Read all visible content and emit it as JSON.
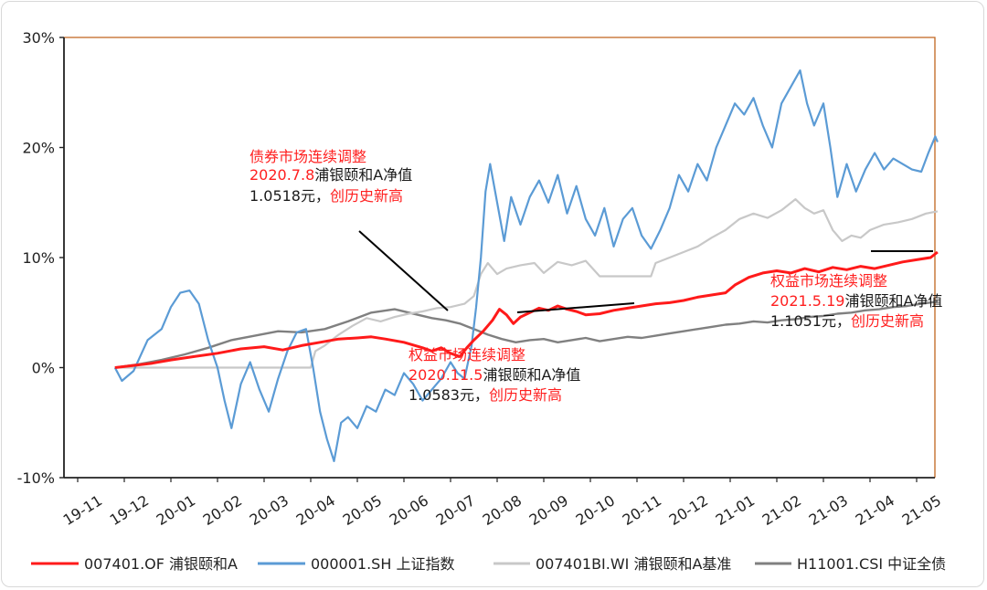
{
  "chart_data": {
    "type": "line",
    "ylim": [
      -10,
      30
    ],
    "y_ticks": [
      "30%",
      "20%",
      "10%",
      "0%",
      "-10%"
    ],
    "y_tick_values": [
      30,
      20,
      10,
      0,
      -10
    ],
    "x_ticks": [
      "19-11",
      "19-12",
      "20-01",
      "20-02",
      "20-03",
      "20-04",
      "20-05",
      "20-06",
      "20-07",
      "20-08",
      "20-09",
      "20-10",
      "20-11",
      "20-12",
      "21-01",
      "21-02",
      "21-03",
      "21-04",
      "21-05"
    ],
    "x_range": [
      0,
      18.5
    ],
    "grid": false,
    "legend_position": "bottom",
    "series": [
      {
        "name": "007401.OF 浦银颐和A",
        "color": "#ff1a1a",
        "points": [
          [
            0.8,
            0
          ],
          [
            1.2,
            0.2
          ],
          [
            1.6,
            0.4
          ],
          [
            2,
            0.7
          ],
          [
            2.5,
            1.0
          ],
          [
            3,
            1.3
          ],
          [
            3.5,
            1.7
          ],
          [
            4,
            1.9
          ],
          [
            4.4,
            1.6
          ],
          [
            4.8,
            2.0
          ],
          [
            5.2,
            2.3
          ],
          [
            5.6,
            2.6
          ],
          [
            6,
            2.7
          ],
          [
            6.3,
            2.8
          ],
          [
            6.6,
            2.6
          ],
          [
            7,
            2.3
          ],
          [
            7.4,
            1.8
          ],
          [
            7.6,
            1.5
          ],
          [
            7.8,
            1.8
          ],
          [
            8.0,
            1.3
          ],
          [
            8.2,
            1.0
          ],
          [
            8.35,
            1.8
          ],
          [
            8.5,
            2.5
          ],
          [
            8.7,
            3.3
          ],
          [
            8.9,
            4.3
          ],
          [
            9.05,
            5.3
          ],
          [
            9.2,
            4.8
          ],
          [
            9.35,
            4.0
          ],
          [
            9.5,
            4.6
          ],
          [
            9.7,
            5.0
          ],
          [
            9.9,
            5.4
          ],
          [
            10.1,
            5.2
          ],
          [
            10.3,
            5.6
          ],
          [
            10.5,
            5.3
          ],
          [
            10.7,
            5.1
          ],
          [
            10.9,
            4.8
          ],
          [
            11.2,
            4.9
          ],
          [
            11.5,
            5.2
          ],
          [
            11.8,
            5.4
          ],
          [
            12.1,
            5.6
          ],
          [
            12.4,
            5.8
          ],
          [
            12.7,
            5.9
          ],
          [
            13.0,
            6.1
          ],
          [
            13.3,
            6.4
          ],
          [
            13.6,
            6.6
          ],
          [
            13.9,
            6.8
          ],
          [
            14.1,
            7.5
          ],
          [
            14.4,
            8.2
          ],
          [
            14.7,
            8.6
          ],
          [
            15.0,
            8.8
          ],
          [
            15.3,
            8.6
          ],
          [
            15.6,
            9.0
          ],
          [
            15.9,
            8.7
          ],
          [
            16.2,
            9.1
          ],
          [
            16.5,
            8.9
          ],
          [
            16.8,
            9.2
          ],
          [
            17.1,
            9.0
          ],
          [
            17.4,
            9.3
          ],
          [
            17.7,
            9.6
          ],
          [
            18.0,
            9.8
          ],
          [
            18.3,
            10.0
          ],
          [
            18.45,
            10.5
          ]
        ]
      },
      {
        "name": "000001.SH 上证指数",
        "color": "#5b9bd5",
        "points": [
          [
            0.8,
            0
          ],
          [
            0.95,
            -1.2
          ],
          [
            1.2,
            -0.3
          ],
          [
            1.5,
            2.5
          ],
          [
            1.8,
            3.5
          ],
          [
            2.0,
            5.5
          ],
          [
            2.2,
            6.8
          ],
          [
            2.4,
            7.0
          ],
          [
            2.6,
            5.8
          ],
          [
            2.8,
            2.5
          ],
          [
            3.0,
            0
          ],
          [
            3.15,
            -3.0
          ],
          [
            3.3,
            -5.5
          ],
          [
            3.5,
            -1.5
          ],
          [
            3.7,
            0.5
          ],
          [
            3.9,
            -2.0
          ],
          [
            4.1,
            -4.0
          ],
          [
            4.3,
            -1.0
          ],
          [
            4.5,
            1.5
          ],
          [
            4.7,
            3.2
          ],
          [
            4.9,
            3.5
          ],
          [
            5.05,
            0
          ],
          [
            5.2,
            -4.0
          ],
          [
            5.35,
            -6.5
          ],
          [
            5.5,
            -8.5
          ],
          [
            5.65,
            -5.0
          ],
          [
            5.8,
            -4.5
          ],
          [
            6.0,
            -5.5
          ],
          [
            6.2,
            -3.5
          ],
          [
            6.4,
            -4.0
          ],
          [
            6.6,
            -2.0
          ],
          [
            6.8,
            -2.5
          ],
          [
            7.0,
            -0.5
          ],
          [
            7.2,
            -1.5
          ],
          [
            7.4,
            -3.0
          ],
          [
            7.6,
            -2.0
          ],
          [
            7.8,
            -1.0
          ],
          [
            8.0,
            0.5
          ],
          [
            8.15,
            -0.5
          ],
          [
            8.3,
            -1.0
          ],
          [
            8.45,
            2.0
          ],
          [
            8.55,
            5.5
          ],
          [
            8.65,
            10.0
          ],
          [
            8.75,
            16.0
          ],
          [
            8.85,
            18.5
          ],
          [
            9.0,
            15.0
          ],
          [
            9.15,
            11.5
          ],
          [
            9.3,
            15.5
          ],
          [
            9.5,
            13.0
          ],
          [
            9.7,
            15.5
          ],
          [
            9.9,
            17.0
          ],
          [
            10.1,
            15.0
          ],
          [
            10.3,
            17.5
          ],
          [
            10.5,
            14.0
          ],
          [
            10.7,
            16.5
          ],
          [
            10.9,
            13.5
          ],
          [
            11.1,
            12.0
          ],
          [
            11.3,
            14.5
          ],
          [
            11.5,
            11.0
          ],
          [
            11.7,
            13.5
          ],
          [
            11.9,
            14.5
          ],
          [
            12.1,
            12.0
          ],
          [
            12.3,
            10.8
          ],
          [
            12.5,
            12.5
          ],
          [
            12.7,
            14.5
          ],
          [
            12.9,
            17.5
          ],
          [
            13.1,
            16.0
          ],
          [
            13.3,
            18.5
          ],
          [
            13.5,
            17.0
          ],
          [
            13.7,
            20.0
          ],
          [
            13.9,
            22.0
          ],
          [
            14.1,
            24.0
          ],
          [
            14.3,
            23.0
          ],
          [
            14.5,
            24.5
          ],
          [
            14.7,
            22.0
          ],
          [
            14.9,
            20.0
          ],
          [
            15.1,
            24.0
          ],
          [
            15.3,
            25.5
          ],
          [
            15.5,
            27.0
          ],
          [
            15.65,
            24.0
          ],
          [
            15.8,
            22.0
          ],
          [
            16.0,
            24.0
          ],
          [
            16.15,
            20.0
          ],
          [
            16.3,
            15.5
          ],
          [
            16.5,
            18.5
          ],
          [
            16.7,
            16.0
          ],
          [
            16.9,
            18.0
          ],
          [
            17.1,
            19.5
          ],
          [
            17.3,
            18.0
          ],
          [
            17.5,
            19.0
          ],
          [
            17.7,
            18.5
          ],
          [
            17.9,
            18.0
          ],
          [
            18.1,
            17.8
          ],
          [
            18.25,
            19.5
          ],
          [
            18.4,
            21.0
          ],
          [
            18.45,
            20.5
          ]
        ]
      },
      {
        "name": "007401BI.WI 浦银颐和A基准",
        "color": "#c8c8c8",
        "points": [
          [
            0.8,
            0
          ],
          [
            1.5,
            0
          ],
          [
            2.5,
            0
          ],
          [
            3.5,
            0
          ],
          [
            4.5,
            0
          ],
          [
            5.0,
            0
          ],
          [
            5.1,
            1.5
          ],
          [
            5.3,
            2.0
          ],
          [
            5.6,
            3.0
          ],
          [
            5.9,
            3.8
          ],
          [
            6.2,
            4.5
          ],
          [
            6.5,
            4.2
          ],
          [
            6.8,
            4.6
          ],
          [
            7.1,
            4.9
          ],
          [
            7.4,
            5.1
          ],
          [
            7.7,
            5.4
          ],
          [
            8.0,
            5.5
          ],
          [
            8.3,
            5.8
          ],
          [
            8.5,
            6.5
          ],
          [
            8.65,
            8.5
          ],
          [
            8.8,
            9.5
          ],
          [
            9.0,
            8.5
          ],
          [
            9.2,
            9.0
          ],
          [
            9.5,
            9.3
          ],
          [
            9.8,
            9.5
          ],
          [
            10.0,
            8.6
          ],
          [
            10.3,
            9.6
          ],
          [
            10.6,
            9.3
          ],
          [
            10.9,
            9.7
          ],
          [
            11.2,
            8.3
          ],
          [
            11.5,
            8.3
          ],
          [
            11.8,
            8.3
          ],
          [
            12.1,
            8.3
          ],
          [
            12.3,
            8.3
          ],
          [
            12.4,
            9.5
          ],
          [
            12.7,
            10.0
          ],
          [
            13.0,
            10.5
          ],
          [
            13.3,
            11.0
          ],
          [
            13.6,
            11.8
          ],
          [
            13.9,
            12.5
          ],
          [
            14.2,
            13.5
          ],
          [
            14.5,
            14.0
          ],
          [
            14.8,
            13.6
          ],
          [
            15.1,
            14.3
          ],
          [
            15.4,
            15.3
          ],
          [
            15.6,
            14.5
          ],
          [
            15.8,
            14.0
          ],
          [
            16.0,
            14.3
          ],
          [
            16.2,
            12.5
          ],
          [
            16.4,
            11.5
          ],
          [
            16.6,
            12.0
          ],
          [
            16.8,
            11.8
          ],
          [
            17.0,
            12.5
          ],
          [
            17.3,
            13.0
          ],
          [
            17.6,
            13.2
          ],
          [
            17.9,
            13.5
          ],
          [
            18.2,
            14.0
          ],
          [
            18.45,
            14.2
          ]
        ]
      },
      {
        "name": "H11001.CSI 中证全债",
        "color": "#808080",
        "points": [
          [
            0.8,
            0
          ],
          [
            1.3,
            0.3
          ],
          [
            1.8,
            0.7
          ],
          [
            2.3,
            1.2
          ],
          [
            2.8,
            1.8
          ],
          [
            3.3,
            2.5
          ],
          [
            3.8,
            2.9
          ],
          [
            4.3,
            3.3
          ],
          [
            4.8,
            3.2
          ],
          [
            5.3,
            3.5
          ],
          [
            5.8,
            4.2
          ],
          [
            6.3,
            5.0
          ],
          [
            6.8,
            5.3
          ],
          [
            7.3,
            4.8
          ],
          [
            7.6,
            4.5
          ],
          [
            7.9,
            4.3
          ],
          [
            8.2,
            4.0
          ],
          [
            8.5,
            3.5
          ],
          [
            8.8,
            3.0
          ],
          [
            9.1,
            2.6
          ],
          [
            9.4,
            2.3
          ],
          [
            9.7,
            2.5
          ],
          [
            10.0,
            2.6
          ],
          [
            10.3,
            2.3
          ],
          [
            10.6,
            2.5
          ],
          [
            10.9,
            2.7
          ],
          [
            11.2,
            2.4
          ],
          [
            11.5,
            2.6
          ],
          [
            11.8,
            2.8
          ],
          [
            12.1,
            2.7
          ],
          [
            12.4,
            2.9
          ],
          [
            12.7,
            3.1
          ],
          [
            13.0,
            3.3
          ],
          [
            13.3,
            3.5
          ],
          [
            13.6,
            3.7
          ],
          [
            13.9,
            3.9
          ],
          [
            14.2,
            4.0
          ],
          [
            14.5,
            4.2
          ],
          [
            14.8,
            4.1
          ],
          [
            15.1,
            4.3
          ],
          [
            15.4,
            4.4
          ],
          [
            15.7,
            4.6
          ],
          [
            16.0,
            4.7
          ],
          [
            16.3,
            4.9
          ],
          [
            16.6,
            5.0
          ],
          [
            16.9,
            5.2
          ],
          [
            17.2,
            5.3
          ],
          [
            17.5,
            5.5
          ],
          [
            17.8,
            5.6
          ],
          [
            18.1,
            5.8
          ],
          [
            18.45,
            6.0
          ]
        ]
      }
    ],
    "annotations": [
      {
        "title": "债券市场连续调整",
        "date": "2020.7.8",
        "desc": "浦银颐和A净值",
        "value": "1.0518元，",
        "tag": "创历史新高"
      },
      {
        "title": "权益市场连续调整",
        "date": "2020.11.5",
        "desc": "浦银颐和A净值",
        "value": "1.0583元，",
        "tag": "创历史新高"
      },
      {
        "title": "权益市场连续调整",
        "date": "2021.5.19",
        "desc": "浦银颐和A净值",
        "value": "1.1051元，",
        "tag": "创历史新高"
      }
    ]
  }
}
